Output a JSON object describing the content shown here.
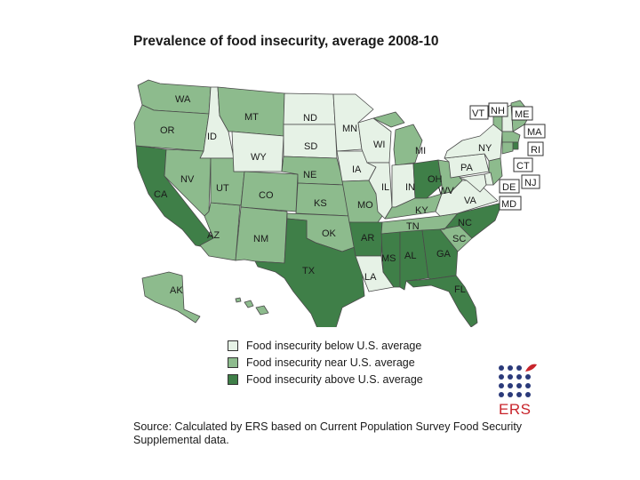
{
  "title": "Prevalence of food insecurity, average 2008-10",
  "colors": {
    "below": "#e6f2e6",
    "near": "#8dbb8d",
    "above": "#3f7f48",
    "border": "#4a4a4a"
  },
  "states": [
    {
      "abbr": "WA",
      "cat": "near"
    },
    {
      "abbr": "OR",
      "cat": "near"
    },
    {
      "abbr": "CA",
      "cat": "above"
    },
    {
      "abbr": "ID",
      "cat": "below"
    },
    {
      "abbr": "NV",
      "cat": "near"
    },
    {
      "abbr": "AZ",
      "cat": "near"
    },
    {
      "abbr": "UT",
      "cat": "near"
    },
    {
      "abbr": "MT",
      "cat": "near"
    },
    {
      "abbr": "WY",
      "cat": "below"
    },
    {
      "abbr": "CO",
      "cat": "near"
    },
    {
      "abbr": "NM",
      "cat": "near"
    },
    {
      "abbr": "ND",
      "cat": "below"
    },
    {
      "abbr": "SD",
      "cat": "below"
    },
    {
      "abbr": "NE",
      "cat": "near"
    },
    {
      "abbr": "KS",
      "cat": "near"
    },
    {
      "abbr": "OK",
      "cat": "near"
    },
    {
      "abbr": "TX",
      "cat": "above"
    },
    {
      "abbr": "MN",
      "cat": "below"
    },
    {
      "abbr": "IA",
      "cat": "below"
    },
    {
      "abbr": "MO",
      "cat": "near"
    },
    {
      "abbr": "AR",
      "cat": "above"
    },
    {
      "abbr": "LA",
      "cat": "below"
    },
    {
      "abbr": "WI",
      "cat": "below"
    },
    {
      "abbr": "IL",
      "cat": "below"
    },
    {
      "abbr": "MI",
      "cat": "near"
    },
    {
      "abbr": "IN",
      "cat": "below"
    },
    {
      "abbr": "OH",
      "cat": "above"
    },
    {
      "abbr": "KY",
      "cat": "near"
    },
    {
      "abbr": "TN",
      "cat": "near"
    },
    {
      "abbr": "MS",
      "cat": "above"
    },
    {
      "abbr": "AL",
      "cat": "above"
    },
    {
      "abbr": "GA",
      "cat": "above"
    },
    {
      "abbr": "FL",
      "cat": "above"
    },
    {
      "abbr": "SC",
      "cat": "near"
    },
    {
      "abbr": "NC",
      "cat": "above"
    },
    {
      "abbr": "VA",
      "cat": "below"
    },
    {
      "abbr": "WV",
      "cat": "near"
    },
    {
      "abbr": "PA",
      "cat": "below"
    },
    {
      "abbr": "NY",
      "cat": "below"
    },
    {
      "abbr": "ME",
      "cat": "near"
    },
    {
      "abbr": "VT",
      "cat": "near"
    },
    {
      "abbr": "NH",
      "cat": "below"
    },
    {
      "abbr": "MA",
      "cat": "near"
    },
    {
      "abbr": "RI",
      "cat": "above"
    },
    {
      "abbr": "CT",
      "cat": "near"
    },
    {
      "abbr": "NJ",
      "cat": "near"
    },
    {
      "abbr": "DE",
      "cat": "below"
    },
    {
      "abbr": "MD",
      "cat": "below"
    },
    {
      "abbr": "AK",
      "cat": "near"
    },
    {
      "abbr": "HI",
      "cat": "near"
    }
  ],
  "legend": [
    {
      "cat": "below",
      "label": "Food insecurity below U.S. average"
    },
    {
      "cat": "near",
      "label": "Food insecurity near U.S. average"
    },
    {
      "cat": "above",
      "label": "Food insecurity above U.S. average"
    }
  ],
  "source": "Source: Calculated by ERS based on Current Population Survey Food Security Supplemental data.",
  "logo_text": "ERS"
}
